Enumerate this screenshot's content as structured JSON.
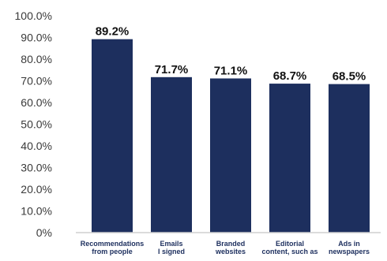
{
  "chart_data": {
    "type": "bar",
    "categories": [
      "Recommendations from people",
      "Emails I signed",
      "Branded websites",
      "Editorial content, such as",
      "Ads in newspapers"
    ],
    "category_lines": [
      [
        "Recommendations",
        "from people"
      ],
      [
        "Emails",
        "I signed"
      ],
      [
        "Branded",
        "websites"
      ],
      [
        "Editorial",
        "content, such as"
      ],
      [
        "Ads in",
        "newspapers"
      ]
    ],
    "values": [
      89.2,
      71.7,
      71.1,
      68.7,
      68.5
    ],
    "value_labels": [
      "89.2%",
      "71.7%",
      "71.1%",
      "68.7%",
      "68.5%"
    ],
    "y_ticks": [
      0,
      10,
      20,
      30,
      40,
      50,
      60,
      70,
      80,
      90,
      100
    ],
    "y_tick_labels": [
      "0%",
      "10.0%",
      "20.0%",
      "30.0%",
      "40.0%",
      "50.0%",
      "60.0%",
      "70.0%",
      "80.0%",
      "90.0%",
      "100.0%"
    ],
    "ylim": [
      0,
      100
    ],
    "bar_color": "#1d2f5e",
    "axis_color": "#cfcfcf",
    "tick_label_color": "#3a3a3a",
    "value_label_color": "#111111",
    "category_label_color": "#1d2f5e",
    "grid": false,
    "legend": "none"
  }
}
